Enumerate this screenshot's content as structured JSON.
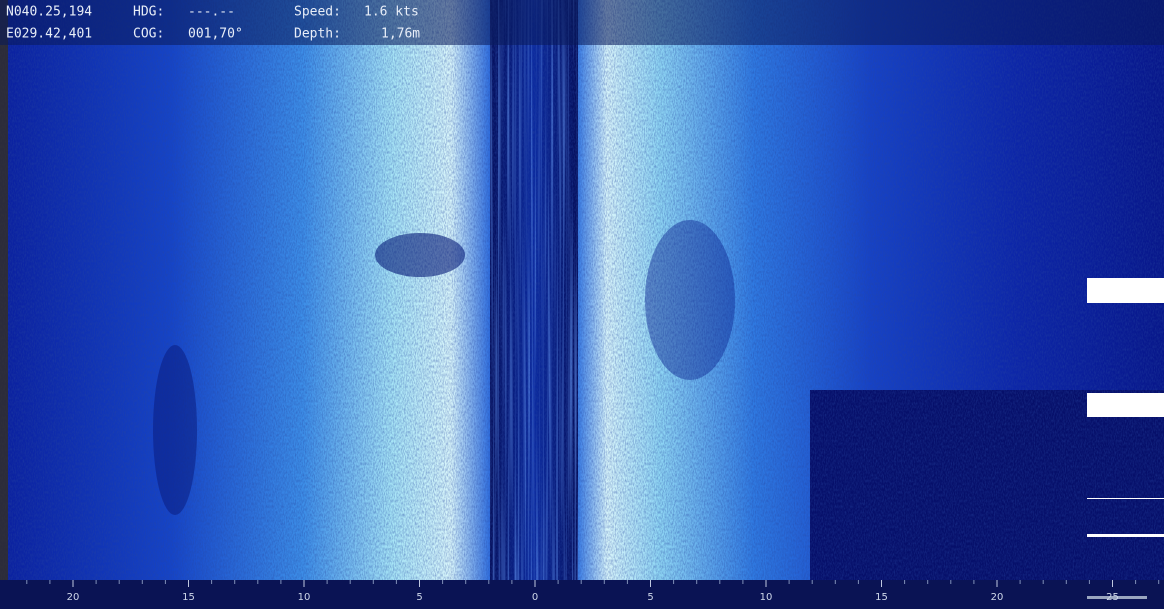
{
  "header": {
    "latitude": "N040.25,194",
    "longitude": "E029.42,401",
    "hdg_label": "HDG:",
    "hdg_value": "---.--",
    "cog_label": "COG:",
    "cog_value": "001,70°",
    "speed_label": "Speed:",
    "speed_value": "1.6 kts",
    "depth_label": "Depth:",
    "depth_value": "1,76m"
  },
  "scale": {
    "port": [
      20,
      15,
      10,
      5
    ],
    "center": 0,
    "starboard": [
      5,
      10,
      15,
      20,
      25
    ]
  }
}
